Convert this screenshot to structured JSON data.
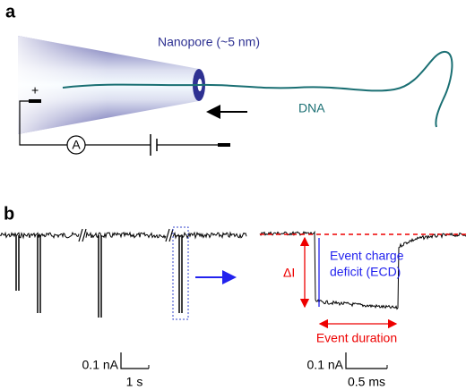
{
  "panel_a": {
    "label": "a",
    "nanopore_label": "Nanopore (~5 nm)",
    "dna_label": "DNA",
    "plus_sign": "+",
    "ammeter_label": "A"
  },
  "panel_b": {
    "label": "b",
    "delta_i": "ΔI",
    "ecd_lines": [
      "Event charge",
      "deficit (ECD)"
    ],
    "event_duration": "Event duration",
    "scale_bar_left": {
      "current": "0.1 nA",
      "time": "1 s"
    },
    "scale_bar_right": {
      "current": "0.1 nA",
      "time": "0.5 ms"
    }
  }
}
